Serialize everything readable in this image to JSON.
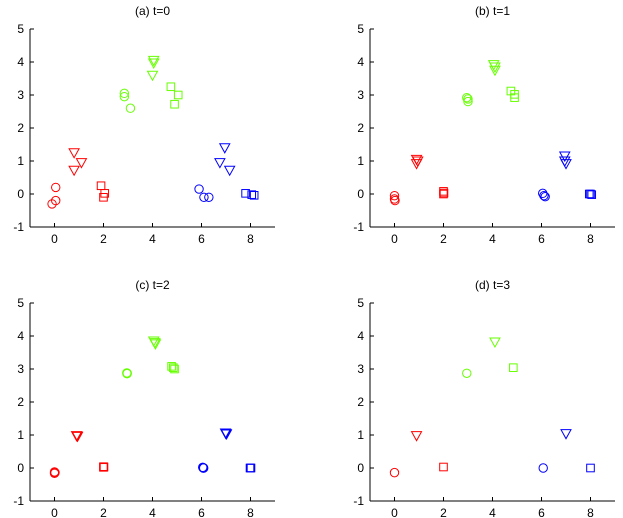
{
  "chart_data": [
    {
      "type": "scatter",
      "title": "(a) t=0",
      "xlabel": "",
      "ylabel": "",
      "xlim": [
        -1,
        9
      ],
      "ylim": [
        -1,
        5
      ],
      "xticks": [
        0,
        2,
        4,
        6,
        8
      ],
      "yticks": [
        -1,
        0,
        1,
        2,
        3,
        4,
        5
      ],
      "grid": false,
      "series": [
        {
          "name": "red-circle",
          "color": "#ff0000",
          "marker": "circle",
          "x": [
            -0.1,
            0.05,
            0.05
          ],
          "y": [
            -0.3,
            -0.2,
            0.2
          ]
        },
        {
          "name": "red-triangle",
          "color": "#ff0000",
          "marker": "triangle-down",
          "x": [
            0.8,
            1.1,
            0.8
          ],
          "y": [
            1.25,
            0.95,
            0.72
          ]
        },
        {
          "name": "red-square",
          "color": "#ff0000",
          "marker": "square",
          "x": [
            1.9,
            2.05,
            2.0
          ],
          "y": [
            0.25,
            0.02,
            -0.1
          ]
        },
        {
          "name": "green-circle",
          "color": "#66ff00",
          "marker": "circle",
          "x": [
            2.85,
            2.85,
            3.1
          ],
          "y": [
            3.05,
            2.95,
            2.6
          ]
        },
        {
          "name": "green-triangle",
          "color": "#66ff00",
          "marker": "triangle-down",
          "x": [
            4.05,
            4.05,
            4.0
          ],
          "y": [
            4.05,
            3.97,
            3.6
          ]
        },
        {
          "name": "green-square",
          "color": "#66ff00",
          "marker": "square",
          "x": [
            4.75,
            5.05,
            4.9
          ],
          "y": [
            3.25,
            3.0,
            2.72
          ]
        },
        {
          "name": "blue-circle",
          "color": "#0000ff",
          "marker": "circle",
          "x": [
            5.9,
            6.1,
            6.3
          ],
          "y": [
            0.15,
            -0.1,
            -0.1
          ]
        },
        {
          "name": "blue-triangle",
          "color": "#0000ff",
          "marker": "triangle-down",
          "x": [
            6.95,
            6.75,
            7.15
          ],
          "y": [
            1.4,
            0.95,
            0.72
          ]
        },
        {
          "name": "blue-square",
          "color": "#0000ff",
          "marker": "square",
          "x": [
            7.8,
            8.05,
            8.15
          ],
          "y": [
            0.02,
            -0.02,
            -0.04
          ]
        }
      ]
    },
    {
      "type": "scatter",
      "title": "(b) t=1",
      "xlabel": "",
      "ylabel": "",
      "xlim": [
        -1,
        9
      ],
      "ylim": [
        -1,
        5
      ],
      "xticks": [
        0,
        2,
        4,
        6,
        8
      ],
      "yticks": [
        -1,
        0,
        1,
        2,
        3,
        4,
        5
      ],
      "grid": false,
      "series": [
        {
          "name": "red-circle",
          "color": "#ff0000",
          "marker": "circle",
          "x": [
            0.0,
            0.0,
            0.02
          ],
          "y": [
            -0.05,
            -0.15,
            -0.2
          ]
        },
        {
          "name": "red-triangle",
          "color": "#ff0000",
          "marker": "triangle-down",
          "x": [
            0.9,
            0.95,
            0.9
          ],
          "y": [
            1.05,
            1.0,
            0.92
          ]
        },
        {
          "name": "red-square",
          "color": "#ff0000",
          "marker": "square",
          "x": [
            2.0,
            2.02,
            2.0
          ],
          "y": [
            0.08,
            0.03,
            0.0
          ]
        },
        {
          "name": "green-circle",
          "color": "#66ff00",
          "marker": "circle",
          "x": [
            2.95,
            3.0,
            3.0
          ],
          "y": [
            2.92,
            2.88,
            2.8
          ]
        },
        {
          "name": "green-triangle",
          "color": "#66ff00",
          "marker": "triangle-down",
          "x": [
            4.05,
            4.1,
            4.1
          ],
          "y": [
            3.92,
            3.85,
            3.75
          ]
        },
        {
          "name": "green-square",
          "color": "#66ff00",
          "marker": "square",
          "x": [
            4.75,
            4.9,
            4.9
          ],
          "y": [
            3.12,
            3.02,
            2.92
          ]
        },
        {
          "name": "blue-circle",
          "color": "#0000ff",
          "marker": "circle",
          "x": [
            6.05,
            6.1,
            6.15
          ],
          "y": [
            0.02,
            -0.05,
            -0.08
          ]
        },
        {
          "name": "blue-triangle",
          "color": "#0000ff",
          "marker": "triangle-down",
          "x": [
            6.95,
            6.95,
            7.0
          ],
          "y": [
            1.15,
            1.0,
            0.92
          ]
        },
        {
          "name": "blue-square",
          "color": "#0000ff",
          "marker": "square",
          "x": [
            7.95,
            8.0,
            8.05
          ],
          "y": [
            0.0,
            0.0,
            -0.02
          ]
        }
      ]
    },
    {
      "type": "scatter",
      "title": "(c) t=2",
      "xlabel": "",
      "ylabel": "",
      "xlim": [
        -1,
        9
      ],
      "ylim": [
        -1,
        5
      ],
      "xticks": [
        0,
        2,
        4,
        6,
        8
      ],
      "yticks": [
        -1,
        0,
        1,
        2,
        3,
        4,
        5
      ],
      "grid": false,
      "series": [
        {
          "name": "red-circle",
          "color": "#ff0000",
          "marker": "circle",
          "x": [
            0.0,
            0.02,
            0.0
          ],
          "y": [
            -0.12,
            -0.14,
            -0.16
          ]
        },
        {
          "name": "red-triangle",
          "color": "#ff0000",
          "marker": "triangle-down",
          "x": [
            0.9,
            0.92,
            0.94
          ],
          "y": [
            0.98,
            0.97,
            0.96
          ]
        },
        {
          "name": "red-square",
          "color": "#ff0000",
          "marker": "square",
          "x": [
            2.0,
            2.0,
            2.02
          ],
          "y": [
            0.04,
            0.02,
            0.03
          ]
        },
        {
          "name": "green-circle",
          "color": "#66ff00",
          "marker": "circle",
          "x": [
            2.95,
            2.97,
            2.96
          ],
          "y": [
            2.88,
            2.87,
            2.86
          ]
        },
        {
          "name": "green-triangle",
          "color": "#66ff00",
          "marker": "triangle-down",
          "x": [
            4.05,
            4.1,
            4.12
          ],
          "y": [
            3.85,
            3.8,
            3.76
          ]
        },
        {
          "name": "green-square",
          "color": "#66ff00",
          "marker": "square",
          "x": [
            4.78,
            4.85,
            4.9
          ],
          "y": [
            3.08,
            3.04,
            3.0
          ]
        },
        {
          "name": "blue-circle",
          "color": "#0000ff",
          "marker": "circle",
          "x": [
            6.05,
            6.07,
            6.09
          ],
          "y": [
            0.02,
            0.0,
            0.0
          ]
        },
        {
          "name": "blue-triangle",
          "color": "#0000ff",
          "marker": "triangle-down",
          "x": [
            6.98,
            7.0,
            7.02
          ],
          "y": [
            1.06,
            1.04,
            1.03
          ]
        },
        {
          "name": "blue-square",
          "color": "#0000ff",
          "marker": "square",
          "x": [
            7.98,
            8.0,
            8.02
          ],
          "y": [
            0.0,
            0.0,
            0.0
          ]
        }
      ]
    },
    {
      "type": "scatter",
      "title": "(d) t=3",
      "xlabel": "",
      "ylabel": "",
      "xlim": [
        -1,
        9
      ],
      "ylim": [
        -1,
        5
      ],
      "xticks": [
        0,
        2,
        4,
        6,
        8
      ],
      "yticks": [
        -1,
        0,
        1,
        2,
        3,
        4,
        5
      ],
      "grid": false,
      "series": [
        {
          "name": "red-circle",
          "color": "#ff0000",
          "marker": "circle",
          "x": [
            0.0
          ],
          "y": [
            -0.14
          ]
        },
        {
          "name": "red-triangle",
          "color": "#ff0000",
          "marker": "triangle-down",
          "x": [
            0.9
          ],
          "y": [
            0.98
          ]
        },
        {
          "name": "red-square",
          "color": "#ff0000",
          "marker": "square",
          "x": [
            2.0
          ],
          "y": [
            0.03
          ]
        },
        {
          "name": "green-circle",
          "color": "#66ff00",
          "marker": "circle",
          "x": [
            2.95
          ],
          "y": [
            2.87
          ]
        },
        {
          "name": "green-triangle",
          "color": "#66ff00",
          "marker": "triangle-down",
          "x": [
            4.1
          ],
          "y": [
            3.82
          ]
        },
        {
          "name": "green-square",
          "color": "#66ff00",
          "marker": "square",
          "x": [
            4.85
          ],
          "y": [
            3.04
          ]
        },
        {
          "name": "blue-circle",
          "color": "#0000ff",
          "marker": "circle",
          "x": [
            6.07
          ],
          "y": [
            0.0
          ]
        },
        {
          "name": "blue-triangle",
          "color": "#0000ff",
          "marker": "triangle-down",
          "x": [
            7.0
          ],
          "y": [
            1.04
          ]
        },
        {
          "name": "blue-square",
          "color": "#0000ff",
          "marker": "square",
          "x": [
            8.0
          ],
          "y": [
            0.0
          ]
        }
      ]
    }
  ]
}
